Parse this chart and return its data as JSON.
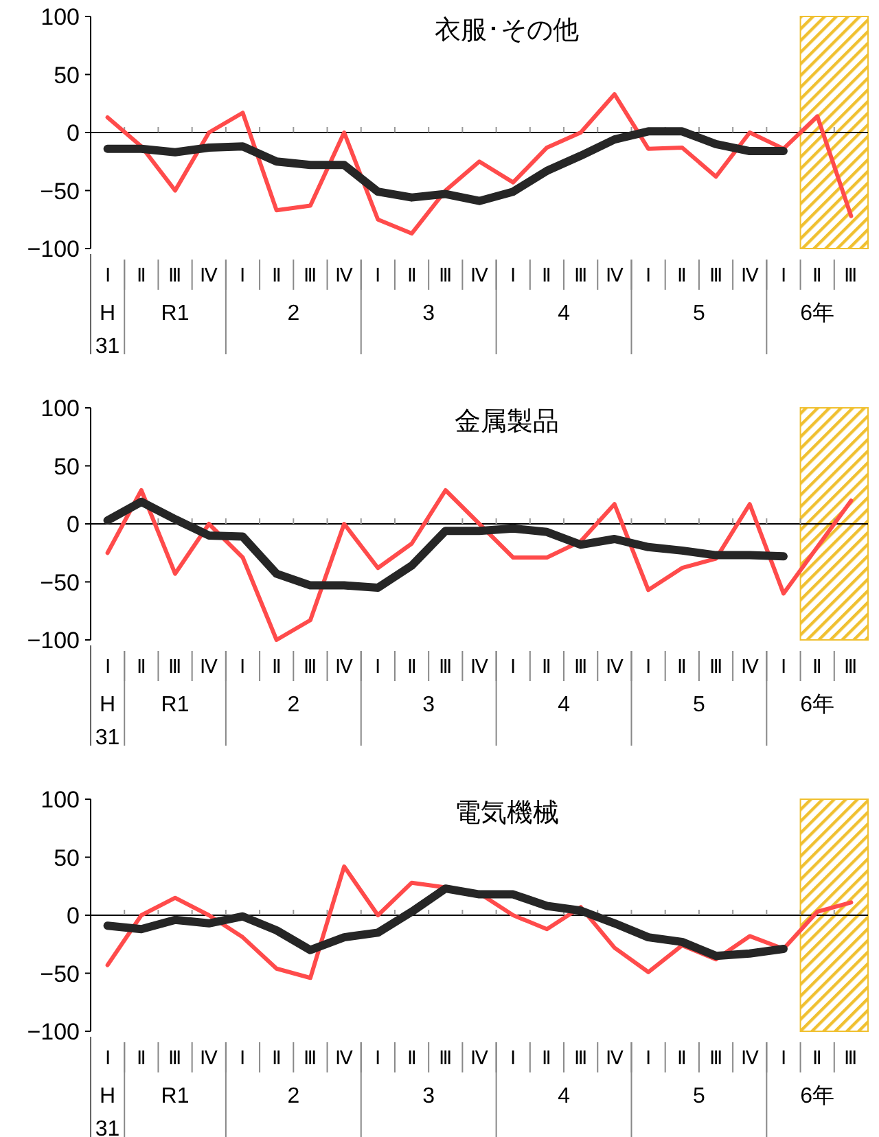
{
  "chart_data": [
    {
      "type": "line",
      "title": "衣服･その他",
      "categories": [
        "Ⅰ",
        "Ⅱ",
        "Ⅲ",
        "Ⅳ",
        "Ⅰ",
        "Ⅱ",
        "Ⅲ",
        "Ⅳ",
        "Ⅰ",
        "Ⅱ",
        "Ⅲ",
        "Ⅳ",
        "Ⅰ",
        "Ⅱ",
        "Ⅲ",
        "Ⅳ",
        "Ⅰ",
        "Ⅱ",
        "Ⅲ",
        "Ⅳ",
        "Ⅰ",
        "Ⅱ",
        "Ⅲ"
      ],
      "series": [
        {
          "color": "#ff4b4b",
          "values": [
            13,
            -12,
            -50,
            0,
            17,
            -67,
            -63,
            0,
            -75,
            -87,
            -50,
            -25,
            -43,
            -13,
            0,
            33,
            -14,
            -13,
            -38,
            0,
            -14,
            14,
            -72
          ]
        },
        {
          "color": "#262626",
          "values": [
            -14,
            -14,
            -17,
            -13,
            -12,
            -25,
            -28,
            -28,
            -51,
            -56,
            -53,
            -59,
            -51,
            -33,
            -20,
            -6,
            1,
            1,
            -10,
            -16,
            -16,
            null,
            null
          ]
        }
      ],
      "ylim": [
        -100,
        100
      ],
      "yticks": [
        100,
        50,
        0,
        -50,
        -100
      ],
      "ref_lines": [
        {
          "axis": "y",
          "value": 0,
          "color": "#000000"
        }
      ],
      "annotations": [
        "H31",
        "R1",
        "2",
        "3",
        "4",
        "5",
        "6年"
      ]
    },
    {
      "type": "line",
      "title": "金属製品",
      "categories": [
        "Ⅰ",
        "Ⅱ",
        "Ⅲ",
        "Ⅳ",
        "Ⅰ",
        "Ⅱ",
        "Ⅲ",
        "Ⅳ",
        "Ⅰ",
        "Ⅱ",
        "Ⅲ",
        "Ⅳ",
        "Ⅰ",
        "Ⅱ",
        "Ⅲ",
        "Ⅳ",
        "Ⅰ",
        "Ⅱ",
        "Ⅲ",
        "Ⅳ",
        "Ⅰ",
        "Ⅱ",
        "Ⅲ"
      ],
      "series": [
        {
          "color": "#ff4b4b",
          "values": [
            -25,
            29,
            -43,
            0,
            -29,
            -100,
            -83,
            0,
            -38,
            -17,
            29,
            0,
            -29,
            -29,
            -15,
            17,
            -57,
            -38,
            -30,
            17,
            -60,
            -20,
            20
          ]
        },
        {
          "color": "#262626",
          "values": [
            3,
            19,
            4,
            -10,
            -11,
            -43,
            -53,
            -53,
            -55,
            -36,
            -6,
            -6,
            -4,
            -7,
            -18,
            -13,
            -20,
            -23,
            -27,
            -27,
            -28,
            null,
            null
          ]
        }
      ],
      "ylim": [
        -100,
        100
      ],
      "yticks": [
        100,
        50,
        0,
        -50,
        -100
      ],
      "ref_lines": [
        {
          "axis": "y",
          "value": 0,
          "color": "#000000"
        }
      ],
      "annotations": [
        "H31",
        "R1",
        "2",
        "3",
        "4",
        "5",
        "6年"
      ]
    },
    {
      "type": "line",
      "title": "電気機械",
      "categories": [
        "Ⅰ",
        "Ⅱ",
        "Ⅲ",
        "Ⅳ",
        "Ⅰ",
        "Ⅱ",
        "Ⅲ",
        "Ⅳ",
        "Ⅰ",
        "Ⅱ",
        "Ⅲ",
        "Ⅳ",
        "Ⅰ",
        "Ⅱ",
        "Ⅲ",
        "Ⅳ",
        "Ⅰ",
        "Ⅱ",
        "Ⅲ",
        "Ⅳ",
        "Ⅰ",
        "Ⅱ",
        "Ⅲ"
      ],
      "series": [
        {
          "color": "#ff4b4b",
          "values": [
            -43,
            0,
            15,
            0,
            -19,
            -46,
            -54,
            42,
            0,
            28,
            24,
            19,
            0,
            -12,
            7,
            -28,
            -49,
            -26,
            -38,
            -18,
            -29,
            3,
            11
          ]
        },
        {
          "color": "#262626",
          "values": [
            -9,
            -12,
            -4,
            -7,
            -1,
            -13,
            -30,
            -19,
            -15,
            3,
            23,
            18,
            18,
            8,
            4,
            -7,
            -19,
            -23,
            -35,
            -33,
            -29,
            null,
            null
          ]
        }
      ],
      "ylim": [
        -100,
        100
      ],
      "yticks": [
        100,
        50,
        0,
        -50,
        -100
      ],
      "ref_lines": [
        {
          "axis": "y",
          "value": 0,
          "color": "#000000"
        }
      ],
      "annotations": [
        "H31",
        "R1",
        "2",
        "3",
        "4",
        "5",
        "6年"
      ]
    }
  ]
}
